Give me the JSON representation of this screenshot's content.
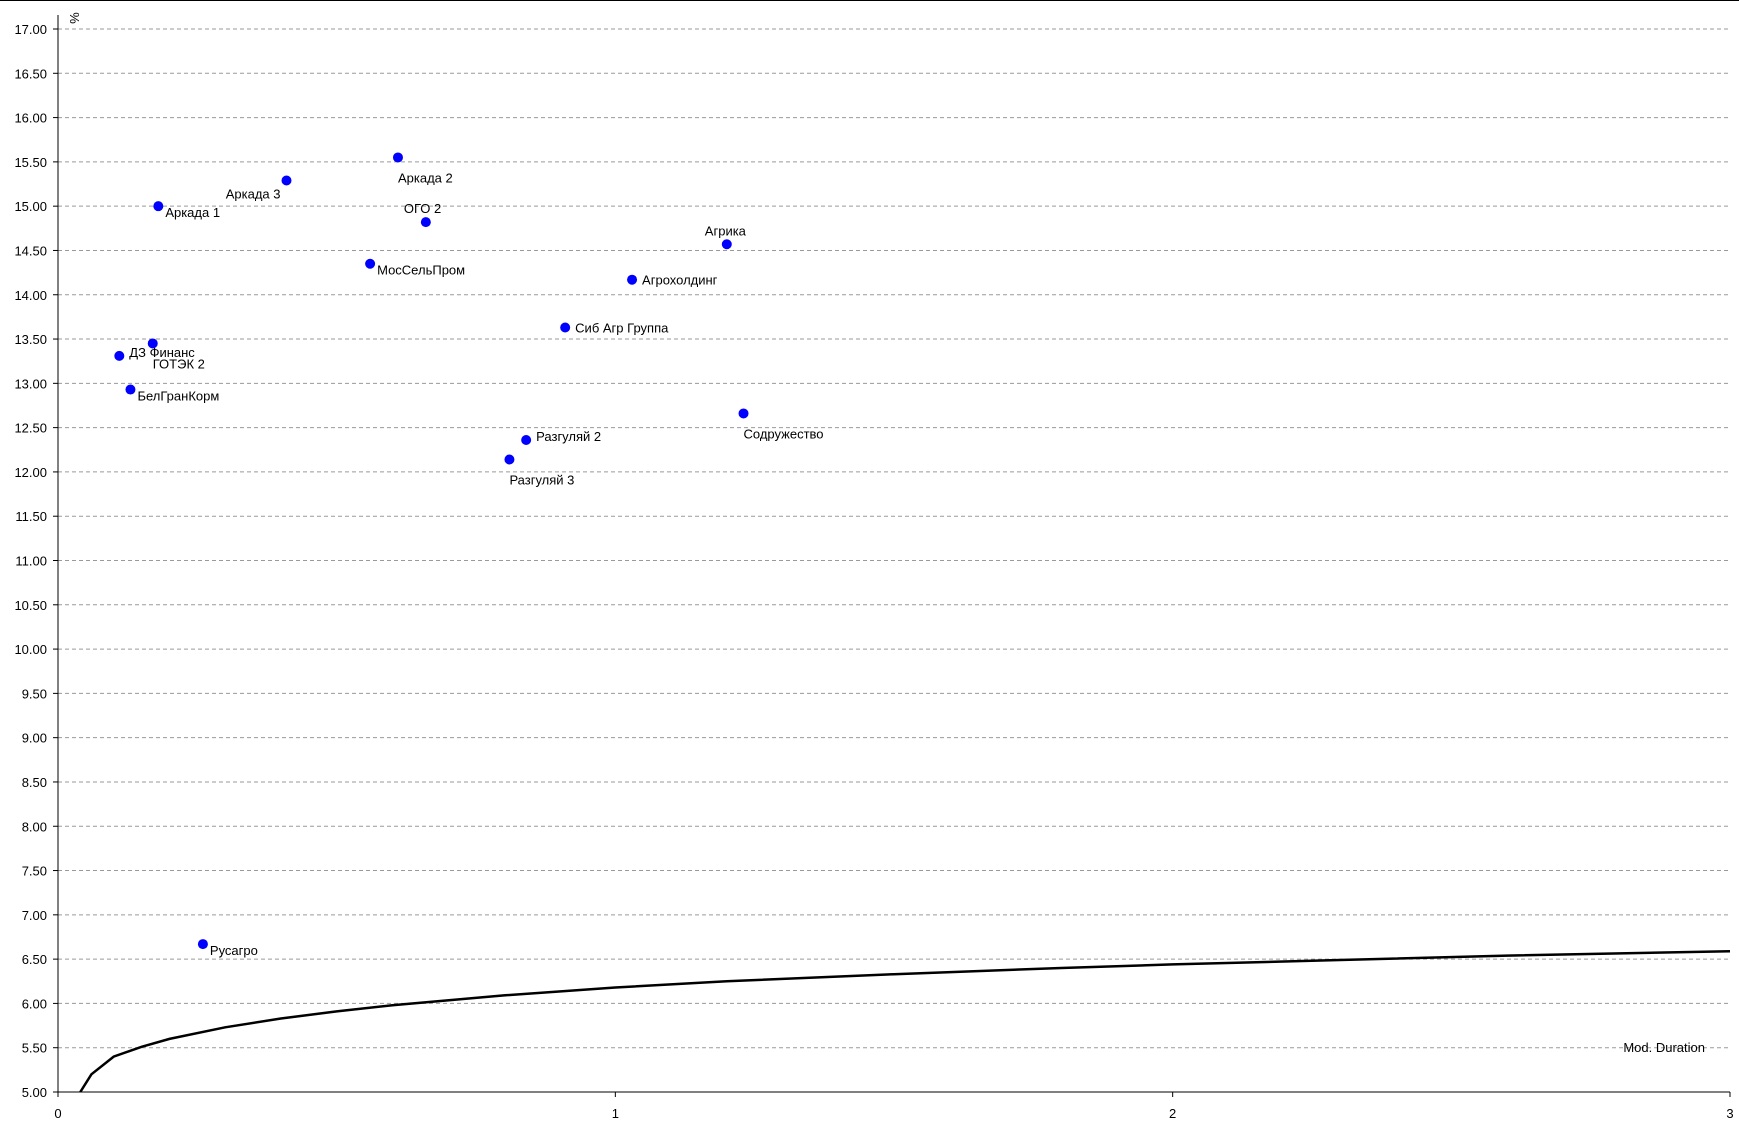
{
  "chart_data": {
    "type": "scatter",
    "ylabel": "%",
    "xlabel": "Mod. Duration",
    "xlim": [
      0,
      3
    ],
    "ylim": [
      5.0,
      17.0
    ],
    "x_ticks": [
      "0",
      "1",
      "2",
      "3"
    ],
    "y_ticks": [
      "5.00",
      "5.50",
      "6.00",
      "6.50",
      "7.00",
      "7.50",
      "8.00",
      "8.50",
      "9.00",
      "9.50",
      "10.00",
      "10.50",
      "11.00",
      "11.50",
      "12.00",
      "12.50",
      "13.00",
      "13.50",
      "14.00",
      "14.50",
      "15.00",
      "15.50",
      "16.00",
      "16.50",
      "17.00"
    ],
    "grid": "horizontal dashed",
    "points_color": "#0000ff",
    "curve_color": "#000000",
    "points": [
      {
        "label": "Аркада 1",
        "x": 0.18,
        "y": 15.0,
        "label_pos": "right-below"
      },
      {
        "label": "Аркада 3",
        "x": 0.41,
        "y": 15.29,
        "label_pos": "left-below"
      },
      {
        "label": "Аркада 2",
        "x": 0.61,
        "y": 15.55,
        "label_pos": "below"
      },
      {
        "label": "ОГО 2",
        "x": 0.66,
        "y": 14.82,
        "label_pos": "above"
      },
      {
        "label": "МосСельПром",
        "x": 0.56,
        "y": 14.35,
        "label_pos": "right-below"
      },
      {
        "label": "Агрика",
        "x": 1.2,
        "y": 14.57,
        "label_pos": "above"
      },
      {
        "label": "Агрохолдинг",
        "x": 1.03,
        "y": 14.17,
        "label_pos": "right"
      },
      {
        "label": "Сиб Агр Группа",
        "x": 0.91,
        "y": 13.63,
        "label_pos": "right"
      },
      {
        "label": "ДЗ Финанс",
        "x": 0.11,
        "y": 13.31,
        "label_pos": "right-above"
      },
      {
        "label": "ГОТЭК 2",
        "x": 0.17,
        "y": 13.45,
        "label_pos": "below"
      },
      {
        "label": "БелГранКорм",
        "x": 0.13,
        "y": 12.93,
        "label_pos": "right-below"
      },
      {
        "label": "Содружество",
        "x": 1.23,
        "y": 12.66,
        "label_pos": "below"
      },
      {
        "label": "Разгуляй 2",
        "x": 0.84,
        "y": 12.36,
        "label_pos": "right-above"
      },
      {
        "label": "Разгуляй 3",
        "x": 0.81,
        "y": 12.14,
        "label_pos": "below"
      },
      {
        "label": "Русагро",
        "x": 0.26,
        "y": 6.67,
        "label_pos": "right-below"
      }
    ],
    "curve": {
      "type": "line",
      "x": [
        0.04,
        0.06,
        0.1,
        0.15,
        0.2,
        0.3,
        0.4,
        0.5,
        0.6,
        0.8,
        1.0,
        1.2,
        1.5,
        1.8,
        2.0,
        2.3,
        2.6,
        3.0
      ],
      "y": [
        5.0,
        5.2,
        5.4,
        5.51,
        5.6,
        5.73,
        5.83,
        5.91,
        5.98,
        6.09,
        6.18,
        6.25,
        6.33,
        6.4,
        6.44,
        6.49,
        6.54,
        6.59
      ]
    }
  }
}
